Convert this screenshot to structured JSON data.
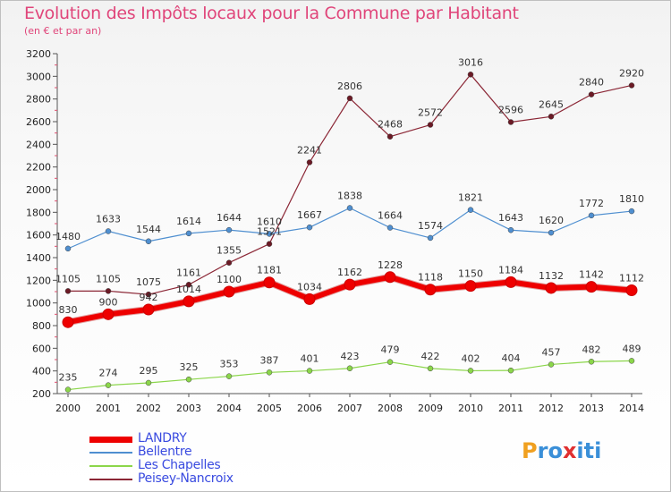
{
  "title": "Evolution des Impôts locaux pour la Commune par Habitant",
  "subtitle": "(en € et par an)",
  "logo": {
    "letters": [
      "P",
      "r",
      "o",
      "x",
      "i",
      "t",
      "i"
    ],
    "colors": [
      "#f0a020",
      "#3a8fd8",
      "#3a8fd8",
      "#e03030",
      "#3a8fd8",
      "#3a8fd8",
      "#3a8fd8"
    ]
  },
  "chart_data": {
    "type": "line",
    "title": "Evolution des Impôts locaux pour la Commune par Habitant",
    "ylabel": "(en € et par an)",
    "categories": [
      "2000",
      "2001",
      "2002",
      "2003",
      "2004",
      "2005",
      "2006",
      "2007",
      "2008",
      "2009",
      "2010",
      "2011",
      "2012",
      "2013",
      "2014"
    ],
    "ylim": [
      200,
      3200
    ],
    "yticks": [
      200,
      400,
      600,
      800,
      1000,
      1200,
      1400,
      1600,
      1800,
      2000,
      2200,
      2400,
      2600,
      2800,
      3000,
      3200
    ],
    "legend_position": "bottom-left",
    "series": [
      {
        "name": "Peisey-Nancroix",
        "color": "#8b2635",
        "marker": "#6b1a25",
        "width": 1.2,
        "values": [
          1105,
          1105,
          1075,
          1161,
          1355,
          1521,
          2241,
          2806,
          2468,
          2572,
          3016,
          2596,
          2645,
          2840,
          2920
        ]
      },
      {
        "name": "Bellentre",
        "color": "#4f8fd0",
        "marker": "#4f8fd0",
        "width": 1.2,
        "values": [
          1480,
          1633,
          1544,
          1614,
          1644,
          1610,
          1667,
          1838,
          1664,
          1574,
          1821,
          1643,
          1620,
          1772,
          1810
        ]
      },
      {
        "name": "Les Chapelles",
        "color": "#8bd64a",
        "marker": "#8bd64a",
        "width": 1.2,
        "values": [
          235,
          274,
          295,
          325,
          353,
          387,
          401,
          423,
          479,
          422,
          402,
          404,
          457,
          482,
          489
        ]
      },
      {
        "name": "LANDRY",
        "color": "#ee0000",
        "marker": "#ee0000",
        "width": 6,
        "values": [
          830,
          900,
          942,
          1014,
          1100,
          1181,
          1034,
          1162,
          1228,
          1118,
          1150,
          1184,
          1132,
          1142,
          1112
        ]
      }
    ],
    "legend": [
      "LANDRY",
      "Bellentre",
      "Les Chapelles",
      "Peisey-Nancroix"
    ]
  }
}
